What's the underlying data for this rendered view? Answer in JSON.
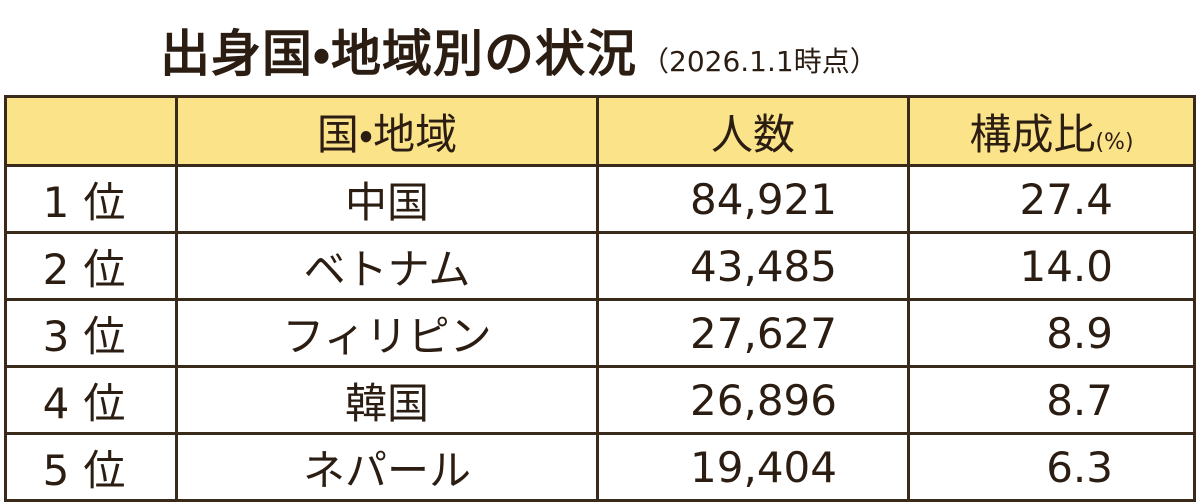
{
  "header": {
    "title": "出身国・地域別の状況",
    "subtitle": "（2026.1.1時点）"
  },
  "table": {
    "columns": [
      "国・地域",
      "人数",
      "構成比"
    ],
    "unit": "(%)",
    "rows": [
      [
        "1位",
        "中国",
        "84,921",
        "27.4"
      ],
      [
        "2位",
        "ベトナム",
        "43,485",
        "14.0"
      ],
      [
        "3位",
        "フィリピン",
        "27,627",
        "8.9"
      ],
      [
        "4位",
        "韓国",
        "26,896",
        "8.7"
      ],
      [
        "5位",
        "ネパール",
        "19,404",
        "6.3"
      ]
    ]
  }
}
